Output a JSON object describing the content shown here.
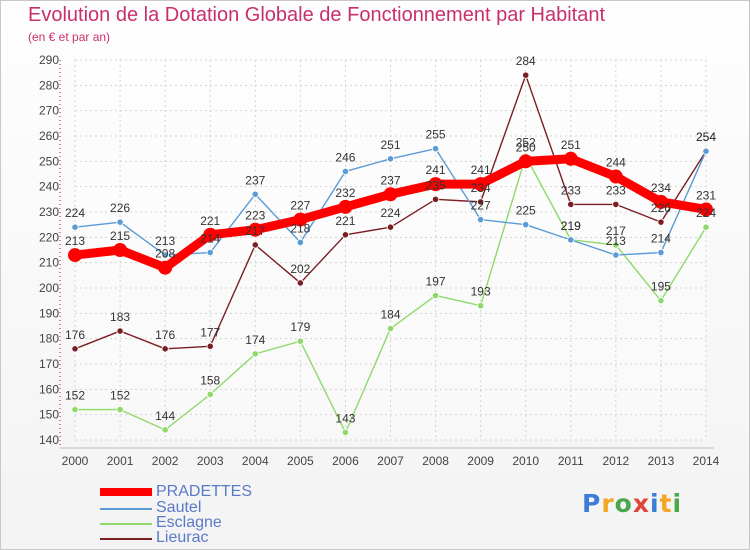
{
  "title": "Evolution de la Dotation Globale de Fonctionnement par Habitant",
  "subtitle": "(en € et par an)",
  "logo": {
    "text": "Proxiti"
  },
  "chart_data": {
    "type": "line",
    "title": "Evolution de la Dotation Globale de Fonctionnement par Habitant",
    "subtitle": "(en € et par an)",
    "x": [
      "2000",
      "2001",
      "2002",
      "2003",
      "2004",
      "2005",
      "2006",
      "2007",
      "2008",
      "2009",
      "2010",
      "2011",
      "2012",
      "2013",
      "2014"
    ],
    "ylim": [
      140,
      290
    ],
    "yticks": [
      140,
      150,
      160,
      170,
      180,
      190,
      200,
      210,
      220,
      230,
      240,
      250,
      260,
      270,
      280,
      290
    ],
    "grid": true,
    "legend_position": "bottom-left",
    "series": [
      {
        "name": "PRADETTES",
        "color": "#ff0000",
        "values": [
          213,
          215,
          208,
          221,
          223,
          227,
          232,
          237,
          241,
          241,
          250,
          251,
          244,
          234,
          231
        ],
        "labels": [
          "213",
          "215",
          "208",
          "221",
          "223",
          "227",
          "232",
          "237",
          "241",
          "241",
          "250",
          "251",
          "244",
          "234",
          "231"
        ]
      },
      {
        "name": "Sautel",
        "color": "#5b9bd5",
        "values": [
          224,
          226,
          213,
          214,
          237,
          218,
          246,
          251,
          255,
          227,
          225,
          219,
          213,
          214,
          254
        ],
        "labels": [
          "224",
          "226",
          "213",
          "214",
          "237",
          "218",
          "246",
          "251",
          "255",
          "227",
          "225",
          "219",
          "213",
          "214",
          "254"
        ]
      },
      {
        "name": "Esclagne",
        "color": "#8fd96a",
        "values": [
          152,
          152,
          144,
          158,
          174,
          179,
          143,
          184,
          197,
          193,
          252,
          219,
          217,
          195,
          224
        ],
        "labels": [
          "152",
          "152",
          "144",
          "158",
          "174",
          "179",
          "143",
          "184",
          "197",
          "193",
          "252",
          "219",
          "217",
          "195",
          "224"
        ]
      },
      {
        "name": "Lieurac",
        "color": "#7a1e24",
        "values": [
          176,
          183,
          176,
          177,
          217,
          202,
          221,
          224,
          235,
          234,
          284,
          233,
          233,
          226,
          254
        ],
        "labels": [
          "176",
          "183",
          "176",
          "177",
          "217",
          "202",
          "221",
          "224",
          "235",
          "234",
          "284",
          "233",
          "233",
          "226",
          "254"
        ]
      }
    ]
  }
}
